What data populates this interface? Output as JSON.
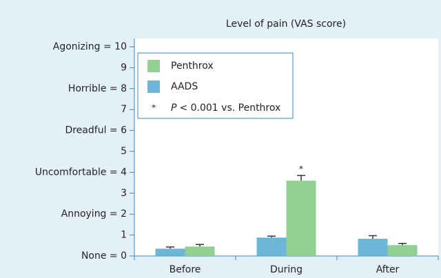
{
  "chart_data": {
    "type": "bar",
    "title": "Level of pain (VAS score)",
    "categories": [
      "Before",
      "During",
      "After"
    ],
    "series": [
      {
        "name": "AADS",
        "color": "#6cb7d7",
        "values": [
          0.35,
          0.88,
          0.82
        ],
        "errors": [
          0.08,
          0.07,
          0.15
        ]
      },
      {
        "name": "Penthrox",
        "color": "#92cf93",
        "values": [
          0.45,
          3.6,
          0.52
        ],
        "errors": [
          0.1,
          0.25,
          0.08
        ]
      }
    ],
    "ylim": [
      0,
      10
    ],
    "yticks": [
      {
        "value": 0,
        "label": "None = 0"
      },
      1,
      {
        "value": 2,
        "label": "Annoying = 2"
      },
      3,
      {
        "value": 4,
        "label": "Uncomfortable = 4"
      },
      5,
      {
        "value": 6,
        "label": "Dreadful = 6"
      },
      7,
      {
        "value": 8,
        "label": "Horrible = 8"
      },
      9,
      {
        "value": 10,
        "label": "Agonizing = 10"
      }
    ],
    "annotation": "*",
    "legend_note": {
      "symbol": "*",
      "italic": "P",
      "text": "< 0.001 vs. Penthrox"
    }
  }
}
